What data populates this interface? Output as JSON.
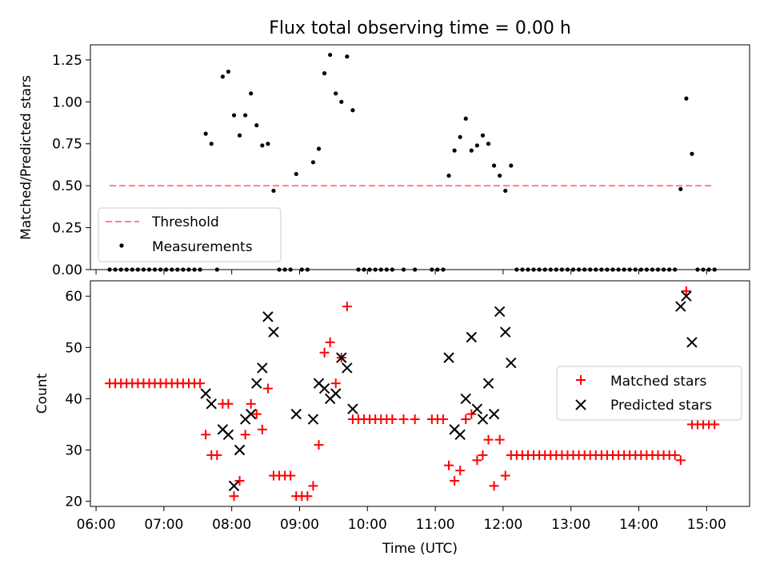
{
  "chart_data": [
    {
      "type": "scatter",
      "title": "Flux total observing time = 0.00 h",
      "xlabel": "",
      "ylabel": "Matched/Predicted stars",
      "xlim": [
        "05:55",
        "15:38"
      ],
      "ylim": [
        0,
        1.34
      ],
      "y_ticks": [
        0.0,
        0.25,
        0.5,
        0.75,
        1.0,
        1.25
      ],
      "y_tick_labels": [
        "0.00",
        "0.25",
        "0.50",
        "0.75",
        "1.00",
        "1.25"
      ],
      "legend_position": "lower-left",
      "threshold": {
        "name": "Threshold",
        "color": "#ff8080",
        "y": 0.5,
        "x_range": [
          "06:12",
          "15:07"
        ]
      },
      "series": [
        {
          "name": "Measurements",
          "color": "#000000",
          "points": [
            [
              "06:12",
              0
            ],
            [
              "06:17",
              0
            ],
            [
              "06:22",
              0
            ],
            [
              "06:27",
              0
            ],
            [
              "06:32",
              0
            ],
            [
              "06:37",
              0
            ],
            [
              "06:42",
              0
            ],
            [
              "06:47",
              0
            ],
            [
              "06:52",
              0
            ],
            [
              "06:57",
              0
            ],
            [
              "07:02",
              0
            ],
            [
              "07:07",
              0
            ],
            [
              "07:12",
              0
            ],
            [
              "07:17",
              0
            ],
            [
              "07:22",
              0
            ],
            [
              "07:27",
              0
            ],
            [
              "07:32",
              0
            ],
            [
              "07:37",
              0.81
            ],
            [
              "07:42",
              0.75
            ],
            [
              "07:47",
              0
            ],
            [
              "07:52",
              1.15
            ],
            [
              "07:57",
              1.18
            ],
            [
              "08:02",
              0.92
            ],
            [
              "08:07",
              0.8
            ],
            [
              "08:12",
              0.92
            ],
            [
              "08:17",
              1.05
            ],
            [
              "08:22",
              0.86
            ],
            [
              "08:27",
              0.74
            ],
            [
              "08:32",
              0.75
            ],
            [
              "08:37",
              0.47
            ],
            [
              "08:42",
              0
            ],
            [
              "08:47",
              0
            ],
            [
              "08:52",
              0
            ],
            [
              "08:57",
              0.57
            ],
            [
              "09:02",
              0
            ],
            [
              "09:07",
              0
            ],
            [
              "09:12",
              0.64
            ],
            [
              "09:17",
              0.72
            ],
            [
              "09:22",
              1.17
            ],
            [
              "09:27",
              1.28
            ],
            [
              "09:32",
              1.05
            ],
            [
              "09:37",
              1.0
            ],
            [
              "09:42",
              1.27
            ],
            [
              "09:47",
              0.95
            ],
            [
              "09:52",
              0
            ],
            [
              "09:57",
              0
            ],
            [
              "10:02",
              0
            ],
            [
              "10:07",
              0
            ],
            [
              "10:12",
              0
            ],
            [
              "10:17",
              0
            ],
            [
              "10:22",
              0
            ],
            [
              "10:32",
              0
            ],
            [
              "10:42",
              0
            ],
            [
              "10:57",
              0
            ],
            [
              "11:02",
              0
            ],
            [
              "11:07",
              0
            ],
            [
              "11:12",
              0.56
            ],
            [
              "11:17",
              0.71
            ],
            [
              "11:22",
              0.79
            ],
            [
              "11:27",
              0.9
            ],
            [
              "11:32",
              0.71
            ],
            [
              "11:37",
              0.74
            ],
            [
              "11:42",
              0.8
            ],
            [
              "11:47",
              0.75
            ],
            [
              "11:52",
              0.62
            ],
            [
              "11:57",
              0.56
            ],
            [
              "12:02",
              0.47
            ],
            [
              "12:07",
              0.62
            ],
            [
              "12:12",
              0
            ],
            [
              "12:17",
              0
            ],
            [
              "12:22",
              0
            ],
            [
              "12:27",
              0
            ],
            [
              "12:32",
              0
            ],
            [
              "12:37",
              0
            ],
            [
              "12:42",
              0
            ],
            [
              "12:47",
              0
            ],
            [
              "12:52",
              0
            ],
            [
              "12:57",
              0
            ],
            [
              "13:02",
              0
            ],
            [
              "13:07",
              0
            ],
            [
              "13:12",
              0
            ],
            [
              "13:17",
              0
            ],
            [
              "13:22",
              0
            ],
            [
              "13:27",
              0
            ],
            [
              "13:32",
              0
            ],
            [
              "13:37",
              0
            ],
            [
              "13:42",
              0
            ],
            [
              "13:47",
              0
            ],
            [
              "13:52",
              0
            ],
            [
              "13:57",
              0
            ],
            [
              "14:02",
              0
            ],
            [
              "14:07",
              0
            ],
            [
              "14:12",
              0
            ],
            [
              "14:17",
              0
            ],
            [
              "14:22",
              0
            ],
            [
              "14:27",
              0
            ],
            [
              "14:32",
              0
            ],
            [
              "14:37",
              0.48
            ],
            [
              "14:42",
              1.02
            ],
            [
              "14:47",
              0.69
            ],
            [
              "14:52",
              0
            ],
            [
              "14:57",
              0
            ],
            [
              "15:02",
              0
            ],
            [
              "15:07",
              0
            ]
          ]
        }
      ]
    },
    {
      "type": "scatter",
      "title": "",
      "xlabel": "Time (UTC)",
      "ylabel": "Count",
      "xlim": [
        "05:55",
        "15:38"
      ],
      "ylim": [
        19,
        63
      ],
      "y_ticks": [
        20,
        30,
        40,
        50,
        60
      ],
      "y_tick_labels": [
        "20",
        "30",
        "40",
        "50",
        "60"
      ],
      "x_ticks": [
        "06:00",
        "07:00",
        "08:00",
        "09:00",
        "10:00",
        "11:00",
        "12:00",
        "13:00",
        "14:00",
        "15:00"
      ],
      "x_tick_labels": [
        "06:00",
        "07:00",
        "08:00",
        "09:00",
        "10:00",
        "11:00",
        "12:00",
        "13:00",
        "14:00",
        "15:00"
      ],
      "legend_position": "center-right",
      "series": [
        {
          "name": "Matched stars",
          "marker": "plus",
          "color": "#ff0000",
          "points": [
            [
              "06:12",
              43
            ],
            [
              "06:17",
              43
            ],
            [
              "06:22",
              43
            ],
            [
              "06:27",
              43
            ],
            [
              "06:32",
              43
            ],
            [
              "06:37",
              43
            ],
            [
              "06:42",
              43
            ],
            [
              "06:47",
              43
            ],
            [
              "06:52",
              43
            ],
            [
              "06:57",
              43
            ],
            [
              "07:02",
              43
            ],
            [
              "07:07",
              43
            ],
            [
              "07:12",
              43
            ],
            [
              "07:17",
              43
            ],
            [
              "07:22",
              43
            ],
            [
              "07:27",
              43
            ],
            [
              "07:32",
              43
            ],
            [
              "07:37",
              33
            ],
            [
              "07:42",
              29
            ],
            [
              "07:47",
              29
            ],
            [
              "07:52",
              39
            ],
            [
              "07:57",
              39
            ],
            [
              "08:02",
              21
            ],
            [
              "08:07",
              24
            ],
            [
              "08:12",
              33
            ],
            [
              "08:17",
              39
            ],
            [
              "08:22",
              37
            ],
            [
              "08:27",
              34
            ],
            [
              "08:32",
              42
            ],
            [
              "08:37",
              25
            ],
            [
              "08:42",
              25
            ],
            [
              "08:47",
              25
            ],
            [
              "08:52",
              25
            ],
            [
              "08:57",
              21
            ],
            [
              "09:02",
              21
            ],
            [
              "09:07",
              21
            ],
            [
              "09:12",
              23
            ],
            [
              "09:17",
              31
            ],
            [
              "09:22",
              49
            ],
            [
              "09:27",
              51
            ],
            [
              "09:32",
              43
            ],
            [
              "09:37",
              48
            ],
            [
              "09:42",
              58
            ],
            [
              "09:47",
              36
            ],
            [
              "09:52",
              36
            ],
            [
              "09:57",
              36
            ],
            [
              "10:02",
              36
            ],
            [
              "10:07",
              36
            ],
            [
              "10:12",
              36
            ],
            [
              "10:17",
              36
            ],
            [
              "10:22",
              36
            ],
            [
              "10:32",
              36
            ],
            [
              "10:42",
              36
            ],
            [
              "10:57",
              36
            ],
            [
              "11:02",
              36
            ],
            [
              "11:07",
              36
            ],
            [
              "11:12",
              27
            ],
            [
              "11:17",
              24
            ],
            [
              "11:22",
              26
            ],
            [
              "11:27",
              36
            ],
            [
              "11:32",
              37
            ],
            [
              "11:37",
              28
            ],
            [
              "11:42",
              29
            ],
            [
              "11:47",
              32
            ],
            [
              "11:52",
              23
            ],
            [
              "11:57",
              32
            ],
            [
              "12:02",
              25
            ],
            [
              "12:07",
              29
            ],
            [
              "12:12",
              29
            ],
            [
              "12:17",
              29
            ],
            [
              "12:22",
              29
            ],
            [
              "12:27",
              29
            ],
            [
              "12:32",
              29
            ],
            [
              "12:37",
              29
            ],
            [
              "12:42",
              29
            ],
            [
              "12:47",
              29
            ],
            [
              "12:52",
              29
            ],
            [
              "12:57",
              29
            ],
            [
              "13:02",
              29
            ],
            [
              "13:07",
              29
            ],
            [
              "13:12",
              29
            ],
            [
              "13:17",
              29
            ],
            [
              "13:22",
              29
            ],
            [
              "13:27",
              29
            ],
            [
              "13:32",
              29
            ],
            [
              "13:37",
              29
            ],
            [
              "13:42",
              29
            ],
            [
              "13:47",
              29
            ],
            [
              "13:52",
              29
            ],
            [
              "13:57",
              29
            ],
            [
              "14:02",
              29
            ],
            [
              "14:07",
              29
            ],
            [
              "14:12",
              29
            ],
            [
              "14:17",
              29
            ],
            [
              "14:22",
              29
            ],
            [
              "14:27",
              29
            ],
            [
              "14:32",
              29
            ],
            [
              "14:37",
              28
            ],
            [
              "14:42",
              61
            ],
            [
              "14:47",
              35
            ],
            [
              "14:52",
              35
            ],
            [
              "14:57",
              35
            ],
            [
              "15:02",
              35
            ],
            [
              "15:07",
              35
            ]
          ]
        },
        {
          "name": "Predicted stars",
          "marker": "x",
          "color": "#000000",
          "points": [
            [
              "07:37",
              41
            ],
            [
              "07:42",
              39
            ],
            [
              "07:52",
              34
            ],
            [
              "07:57",
              33
            ],
            [
              "08:02",
              23
            ],
            [
              "08:07",
              30
            ],
            [
              "08:12",
              36
            ],
            [
              "08:17",
              37
            ],
            [
              "08:22",
              43
            ],
            [
              "08:27",
              46
            ],
            [
              "08:32",
              56
            ],
            [
              "08:37",
              53
            ],
            [
              "08:57",
              37
            ],
            [
              "09:12",
              36
            ],
            [
              "09:17",
              43
            ],
            [
              "09:22",
              42
            ],
            [
              "09:27",
              40
            ],
            [
              "09:32",
              41
            ],
            [
              "09:37",
              48
            ],
            [
              "09:42",
              46
            ],
            [
              "09:47",
              38
            ],
            [
              "11:12",
              48
            ],
            [
              "11:17",
              34
            ],
            [
              "11:22",
              33
            ],
            [
              "11:27",
              40
            ],
            [
              "11:32",
              52
            ],
            [
              "11:37",
              38
            ],
            [
              "11:42",
              36
            ],
            [
              "11:47",
              43
            ],
            [
              "11:52",
              37
            ],
            [
              "11:57",
              57
            ],
            [
              "12:02",
              53
            ],
            [
              "12:07",
              47
            ],
            [
              "14:37",
              58
            ],
            [
              "14:42",
              60
            ],
            [
              "14:47",
              51
            ]
          ]
        }
      ]
    }
  ]
}
